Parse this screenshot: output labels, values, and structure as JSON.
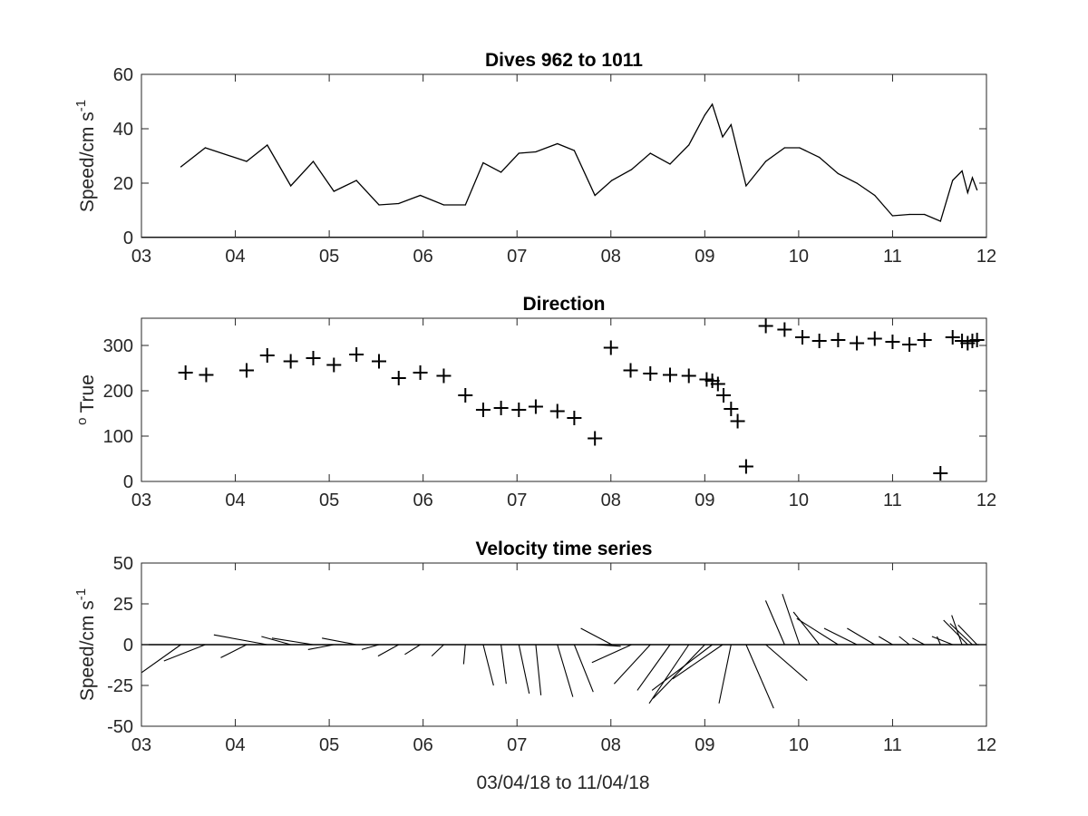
{
  "figure": {
    "xlabel": "03/04/18 to 11/04/18"
  },
  "chart_data": [
    {
      "type": "line",
      "title": "Dives 962 to 1011",
      "ylabel_main": "Speed/cm s",
      "ylabel_sup": "-1",
      "xlim": [
        3,
        12
      ],
      "ylim": [
        0,
        60
      ],
      "x_ticks": [
        "03",
        "04",
        "05",
        "06",
        "07",
        "08",
        "09",
        "10",
        "11",
        "12"
      ],
      "y_ticks": [
        "0",
        "20",
        "40",
        "60"
      ],
      "x": [
        3.42,
        3.68,
        4.12,
        4.34,
        4.59,
        4.83,
        5.05,
        5.29,
        5.53,
        5.74,
        5.97,
        6.22,
        6.45,
        6.64,
        6.83,
        7.02,
        7.2,
        7.43,
        7.61,
        7.83,
        8.01,
        8.22,
        8.42,
        8.63,
        8.83,
        9.0,
        9.08,
        9.19,
        9.28,
        9.44,
        9.65,
        9.85,
        10.01,
        10.22,
        10.42,
        10.62,
        10.81,
        11.0,
        11.18,
        11.34,
        11.51,
        11.64,
        11.74,
        11.8,
        11.85,
        11.9
      ],
      "y": [
        26,
        33,
        28,
        34,
        19,
        28,
        17,
        21,
        12,
        12.5,
        15.5,
        12,
        12,
        27.5,
        24,
        31,
        31.5,
        34.5,
        32,
        15.5,
        21,
        25,
        31,
        27,
        34,
        45,
        49,
        37,
        41.5,
        19,
        28,
        33,
        33,
        29.5,
        23.5,
        20,
        15.5,
        8,
        8.5,
        8.5,
        6,
        21,
        24.5,
        16.5,
        22,
        17.5
      ]
    },
    {
      "type": "scatter",
      "marker": "+",
      "title": "Direction",
      "ylabel_main": "True",
      "ylabel_sup": "o",
      "xlim": [
        3,
        12
      ],
      "ylim": [
        0,
        360
      ],
      "x_ticks": [
        "03",
        "04",
        "05",
        "06",
        "07",
        "08",
        "09",
        "10",
        "11",
        "12"
      ],
      "y_ticks": [
        "0",
        "100",
        "200",
        "300"
      ],
      "x": [
        3.47,
        3.69,
        4.12,
        4.34,
        4.59,
        4.83,
        5.05,
        5.29,
        5.53,
        5.74,
        5.97,
        6.22,
        6.45,
        6.64,
        6.83,
        7.02,
        7.2,
        7.43,
        7.61,
        7.83,
        8.0,
        8.21,
        8.42,
        8.63,
        8.83,
        9.02,
        9.08,
        9.14,
        9.2,
        9.28,
        9.35,
        9.44,
        9.65,
        9.85,
        10.04,
        10.22,
        10.42,
        10.62,
        10.81,
        11.0,
        11.18,
        11.34,
        11.51,
        11.64,
        11.74,
        11.8,
        11.85,
        11.9
      ],
      "y": [
        240,
        235,
        245,
        278,
        265,
        272,
        257,
        280,
        265,
        228,
        240,
        233,
        190,
        158,
        162,
        158,
        165,
        155,
        140,
        95,
        295,
        245,
        238,
        235,
        233,
        225,
        222,
        215,
        190,
        160,
        133,
        33,
        343,
        335,
        318,
        310,
        312,
        305,
        315,
        308,
        302,
        312,
        18,
        318,
        310,
        305,
        310,
        312
      ]
    },
    {
      "type": "quiver",
      "title": "Velocity time series",
      "ylabel_main": "Speed/cm s",
      "ylabel_sup": "-1",
      "xlim": [
        3,
        12
      ],
      "ylim": [
        -50,
        50
      ],
      "x_ticks": [
        "03",
        "04",
        "05",
        "06",
        "07",
        "08",
        "09",
        "10",
        "11",
        "12"
      ],
      "y_ticks": [
        "-50",
        "-25",
        "0",
        "25",
        "50"
      ],
      "comment_units": "x = day of month (base point), u = east component, v = north component, speed units (cm s-1)",
      "arrows": [
        {
          "x": 3.42,
          "u": -24,
          "v": -18
        },
        {
          "x": 3.68,
          "u": -24,
          "v": -10
        },
        {
          "x": 4.12,
          "u": -15,
          "v": -8
        },
        {
          "x": 4.34,
          "u": -31,
          "v": 6
        },
        {
          "x": 4.59,
          "u": -17,
          "v": 5
        },
        {
          "x": 4.83,
          "u": -24,
          "v": 4
        },
        {
          "x": 5.05,
          "u": -15,
          "v": -3
        },
        {
          "x": 5.29,
          "u": -20,
          "v": 4
        },
        {
          "x": 5.53,
          "u": -10,
          "v": -3
        },
        {
          "x": 5.74,
          "u": -12,
          "v": -7
        },
        {
          "x": 5.97,
          "u": -9,
          "v": -6
        },
        {
          "x": 6.22,
          "u": -7,
          "v": -7
        },
        {
          "x": 6.45,
          "u": -1,
          "v": -12
        },
        {
          "x": 6.64,
          "u": 6,
          "v": -25
        },
        {
          "x": 6.83,
          "u": 3,
          "v": -24
        },
        {
          "x": 7.02,
          "u": 6,
          "v": -30
        },
        {
          "x": 7.2,
          "u": 3,
          "v": -31
        },
        {
          "x": 7.43,
          "u": 9,
          "v": -32
        },
        {
          "x": 7.61,
          "u": 11,
          "v": -29
        },
        {
          "x": 7.83,
          "u": 15,
          "v": -1
        },
        {
          "x": 8.01,
          "u": -18,
          "v": 10
        },
        {
          "x": 8.22,
          "u": -23,
          "v": -11
        },
        {
          "x": 8.42,
          "u": -21,
          "v": -24
        },
        {
          "x": 8.63,
          "u": -19,
          "v": -28
        },
        {
          "x": 8.83,
          "u": -23,
          "v": -36
        },
        {
          "x": 9.0,
          "u": -30,
          "v": -33
        },
        {
          "x": 9.08,
          "u": -35,
          "v": -28
        },
        {
          "x": 9.19,
          "u": -29,
          "v": -21
        },
        {
          "x": 9.28,
          "u": -7,
          "v": -36
        },
        {
          "x": 9.44,
          "u": 16,
          "v": -39
        },
        {
          "x": 9.65,
          "u": 24,
          "v": -22
        },
        {
          "x": 9.85,
          "u": -11,
          "v": 27
        },
        {
          "x": 10.01,
          "u": -10,
          "v": 31
        },
        {
          "x": 10.22,
          "u": -15,
          "v": 20
        },
        {
          "x": 10.42,
          "u": -24,
          "v": 16
        },
        {
          "x": 10.62,
          "u": -19,
          "v": 10
        },
        {
          "x": 10.81,
          "u": -16,
          "v": 10
        },
        {
          "x": 11.0,
          "u": -8,
          "v": 5
        },
        {
          "x": 11.18,
          "u": -6,
          "v": 5
        },
        {
          "x": 11.34,
          "u": -7,
          "v": 4
        },
        {
          "x": 11.51,
          "u": -2,
          "v": 5
        },
        {
          "x": 11.64,
          "u": -12,
          "v": 5
        },
        {
          "x": 11.74,
          "u": -6,
          "v": 18
        },
        {
          "x": 11.8,
          "u": -14,
          "v": 15
        },
        {
          "x": 11.85,
          "u": -13,
          "v": 13
        },
        {
          "x": 11.9,
          "u": -11,
          "v": 12
        }
      ]
    }
  ]
}
